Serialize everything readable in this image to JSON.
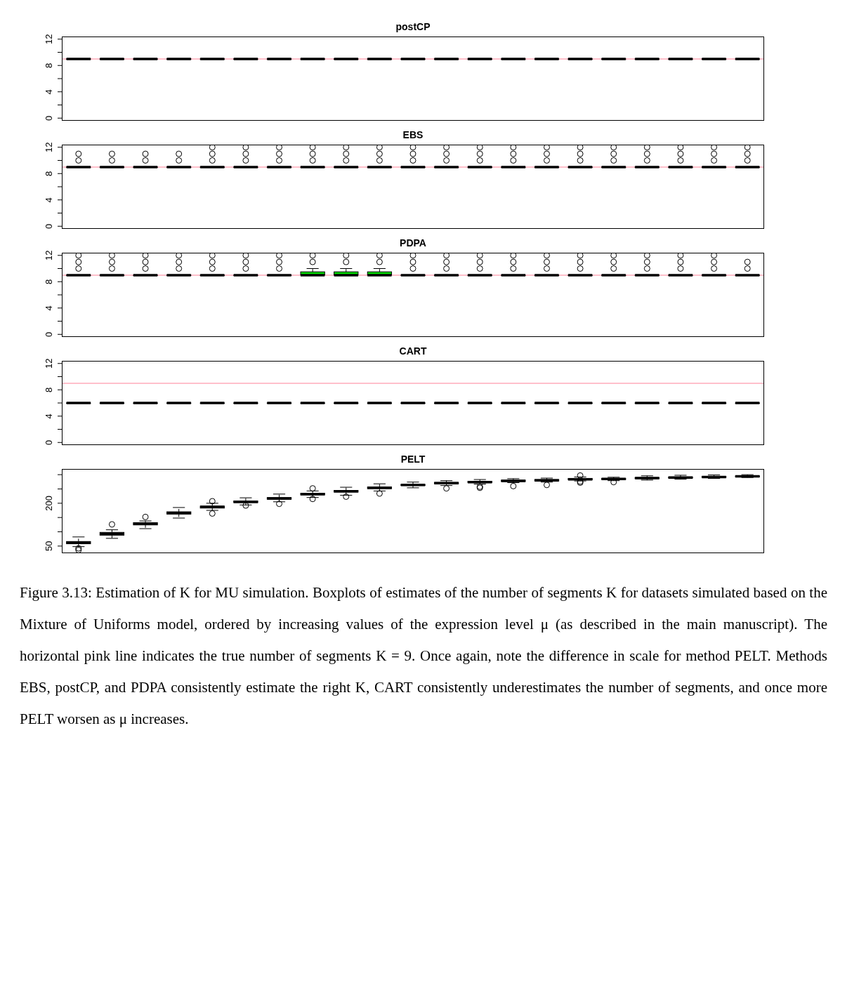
{
  "chart_data": [
    {
      "type": "box",
      "title": "postCP",
      "categories": [
        null,
        null,
        null,
        null,
        null,
        null,
        null,
        null,
        null,
        null,
        null,
        null,
        null,
        null,
        null,
        null,
        null,
        null,
        null,
        null,
        null
      ],
      "ylim": [
        -0.4,
        12.4
      ],
      "yticks": [
        0,
        {
          "value": 2,
          "label": null
        },
        4,
        {
          "value": 6,
          "label": null
        },
        8,
        {
          "value": 10,
          "label": null
        },
        12
      ],
      "tick_labels": "y",
      "ref_lines": [
        {
          "axis": "y",
          "value": 9,
          "color": "#ffc0cb"
        }
      ],
      "boxes": [
        {
          "low": 9,
          "q1": 9,
          "median": 9,
          "q3": 9,
          "high": 9
        },
        {
          "low": 9,
          "q1": 9,
          "median": 9,
          "q3": 9,
          "high": 9
        },
        {
          "low": 9,
          "q1": 9,
          "median": 9,
          "q3": 9,
          "high": 9
        },
        {
          "low": 9,
          "q1": 9,
          "median": 9,
          "q3": 9,
          "high": 9
        },
        {
          "low": 9,
          "q1": 9,
          "median": 9,
          "q3": 9,
          "high": 9
        },
        {
          "low": 9,
          "q1": 9,
          "median": 9,
          "q3": 9,
          "high": 9
        },
        {
          "low": 9,
          "q1": 9,
          "median": 9,
          "q3": 9,
          "high": 9
        },
        {
          "low": 9,
          "q1": 9,
          "median": 9,
          "q3": 9,
          "high": 9
        },
        {
          "low": 9,
          "q1": 9,
          "median": 9,
          "q3": 9,
          "high": 9
        },
        {
          "low": 9,
          "q1": 9,
          "median": 9,
          "q3": 9,
          "high": 9
        },
        {
          "low": 9,
          "q1": 9,
          "median": 9,
          "q3": 9,
          "high": 9
        },
        {
          "low": 9,
          "q1": 9,
          "median": 9,
          "q3": 9,
          "high": 9
        },
        {
          "low": 9,
          "q1": 9,
          "median": 9,
          "q3": 9,
          "high": 9
        },
        {
          "low": 9,
          "q1": 9,
          "median": 9,
          "q3": 9,
          "high": 9
        },
        {
          "low": 9,
          "q1": 9,
          "median": 9,
          "q3": 9,
          "high": 9
        },
        {
          "low": 9,
          "q1": 9,
          "median": 9,
          "q3": 9,
          "high": 9
        },
        {
          "low": 9,
          "q1": 9,
          "median": 9,
          "q3": 9,
          "high": 9
        },
        {
          "low": 9,
          "q1": 9,
          "median": 9,
          "q3": 9,
          "high": 9
        },
        {
          "low": 9,
          "q1": 9,
          "median": 9,
          "q3": 9,
          "high": 9
        },
        {
          "low": 9,
          "q1": 9,
          "median": 9,
          "q3": 9,
          "high": 9
        },
        {
          "low": 9,
          "q1": 9,
          "median": 9,
          "q3": 9,
          "high": 9
        }
      ]
    },
    {
      "type": "box",
      "title": "EBS",
      "categories": [
        null,
        null,
        null,
        null,
        null,
        null,
        null,
        null,
        null,
        null,
        null,
        null,
        null,
        null,
        null,
        null,
        null,
        null,
        null,
        null,
        null
      ],
      "ylim": [
        -0.4,
        12.4
      ],
      "yticks": [
        0,
        {
          "value": 2,
          "label": null
        },
        4,
        {
          "value": 6,
          "label": null
        },
        8,
        {
          "value": 10,
          "label": null
        },
        12
      ],
      "tick_labels": "y",
      "ref_lines": [
        {
          "axis": "y",
          "value": 9,
          "color": "#ffc0cb"
        }
      ],
      "boxes": [
        {
          "low": 9,
          "q1": 9,
          "median": 9,
          "q3": 9,
          "high": 9,
          "outliers": [
            10,
            11
          ]
        },
        {
          "low": 9,
          "q1": 9,
          "median": 9,
          "q3": 9,
          "high": 9,
          "outliers": [
            10,
            11
          ]
        },
        {
          "low": 9,
          "q1": 9,
          "median": 9,
          "q3": 9,
          "high": 9,
          "outliers": [
            10,
            11
          ]
        },
        {
          "low": 9,
          "q1": 9,
          "median": 9,
          "q3": 9,
          "high": 9,
          "outliers": [
            10,
            11
          ]
        },
        {
          "low": 9,
          "q1": 9,
          "median": 9,
          "q3": 9,
          "high": 9,
          "outliers": [
            10,
            11,
            12
          ]
        },
        {
          "low": 9,
          "q1": 9,
          "median": 9,
          "q3": 9,
          "high": 9,
          "outliers": [
            10,
            11,
            12
          ]
        },
        {
          "low": 9,
          "q1": 9,
          "median": 9,
          "q3": 9,
          "high": 9,
          "outliers": [
            10,
            11,
            12
          ]
        },
        {
          "low": 9,
          "q1": 9,
          "median": 9,
          "q3": 9,
          "high": 9,
          "outliers": [
            10,
            11,
            12
          ]
        },
        {
          "low": 9,
          "q1": 9,
          "median": 9,
          "q3": 9,
          "high": 9,
          "outliers": [
            10,
            11,
            12
          ]
        },
        {
          "low": 9,
          "q1": 9,
          "median": 9,
          "q3": 9,
          "high": 9,
          "outliers": [
            10,
            11,
            12
          ]
        },
        {
          "low": 9,
          "q1": 9,
          "median": 9,
          "q3": 9,
          "high": 9,
          "outliers": [
            10,
            11,
            12
          ]
        },
        {
          "low": 9,
          "q1": 9,
          "median": 9,
          "q3": 9,
          "high": 9,
          "outliers": [
            10,
            11,
            12
          ]
        },
        {
          "low": 9,
          "q1": 9,
          "median": 9,
          "q3": 9,
          "high": 9,
          "outliers": [
            10,
            11,
            12
          ]
        },
        {
          "low": 9,
          "q1": 9,
          "median": 9,
          "q3": 9,
          "high": 9,
          "outliers": [
            10,
            11,
            12
          ]
        },
        {
          "low": 9,
          "q1": 9,
          "median": 9,
          "q3": 9,
          "high": 9,
          "outliers": [
            10,
            11,
            12
          ]
        },
        {
          "low": 9,
          "q1": 9,
          "median": 9,
          "q3": 9,
          "high": 9,
          "outliers": [
            10,
            11,
            12
          ]
        },
        {
          "low": 9,
          "q1": 9,
          "median": 9,
          "q3": 9,
          "high": 9,
          "outliers": [
            10,
            11,
            12
          ]
        },
        {
          "low": 9,
          "q1": 9,
          "median": 9,
          "q3": 9,
          "high": 9,
          "outliers": [
            10,
            11,
            12
          ]
        },
        {
          "low": 9,
          "q1": 9,
          "median": 9,
          "q3": 9,
          "high": 9,
          "outliers": [
            10,
            11,
            12
          ]
        },
        {
          "low": 9,
          "q1": 9,
          "median": 9,
          "q3": 9,
          "high": 9,
          "outliers": [
            10,
            11,
            12
          ]
        },
        {
          "low": 9,
          "q1": 9,
          "median": 9,
          "q3": 9,
          "high": 9,
          "outliers": [
            10,
            11,
            12
          ]
        }
      ]
    },
    {
      "type": "box",
      "title": "PDPA",
      "categories": [
        null,
        null,
        null,
        null,
        null,
        null,
        null,
        null,
        null,
        null,
        null,
        null,
        null,
        null,
        null,
        null,
        null,
        null,
        null,
        null,
        null
      ],
      "ylim": [
        -0.4,
        12.4
      ],
      "yticks": [
        0,
        {
          "value": 2,
          "label": null
        },
        4,
        {
          "value": 6,
          "label": null
        },
        8,
        {
          "value": 10,
          "label": null
        },
        12
      ],
      "tick_labels": "y",
      "ref_lines": [
        {
          "axis": "y",
          "value": 9,
          "color": "#ffc0cb"
        }
      ],
      "colors": [
        "#ffffff",
        "#ffffff",
        "#ffffff",
        "#ffffff",
        "#ffffff",
        "#ffffff",
        "#ffffff",
        "#00dd00",
        "#00dd00",
        "#00dd00",
        "#ffffff",
        "#ffffff",
        "#ffffff",
        "#ffffff",
        "#ffffff",
        "#ffffff",
        "#ffffff",
        "#ffffff",
        "#ffffff",
        "#ffffff",
        "#ffffff"
      ],
      "boxes": [
        {
          "low": 9,
          "q1": 9,
          "median": 9,
          "q3": 9,
          "high": 9,
          "outliers": [
            10,
            11,
            12
          ]
        },
        {
          "low": 9,
          "q1": 9,
          "median": 9,
          "q3": 9,
          "high": 9,
          "outliers": [
            10,
            11,
            12
          ]
        },
        {
          "low": 9,
          "q1": 9,
          "median": 9,
          "q3": 9,
          "high": 9,
          "outliers": [
            10,
            11,
            12
          ]
        },
        {
          "low": 9,
          "q1": 9,
          "median": 9,
          "q3": 9,
          "high": 9,
          "outliers": [
            10,
            11,
            12
          ]
        },
        {
          "low": 9,
          "q1": 9,
          "median": 9,
          "q3": 9,
          "high": 9,
          "outliers": [
            10,
            11,
            12
          ]
        },
        {
          "low": 9,
          "q1": 9,
          "median": 9,
          "q3": 9,
          "high": 9,
          "outliers": [
            10,
            11,
            12
          ]
        },
        {
          "low": 9,
          "q1": 9,
          "median": 9,
          "q3": 9,
          "high": 9,
          "outliers": [
            10,
            11,
            12
          ]
        },
        {
          "low": 9,
          "q1": 9,
          "median": 9,
          "q3": 9.5,
          "high": 10,
          "outliers": [
            11,
            12
          ]
        },
        {
          "low": 9,
          "q1": 9,
          "median": 9,
          "q3": 9.5,
          "high": 10,
          "outliers": [
            11,
            12
          ]
        },
        {
          "low": 9,
          "q1": 9,
          "median": 9,
          "q3": 9.5,
          "high": 10,
          "outliers": [
            11,
            12
          ]
        },
        {
          "low": 9,
          "q1": 9,
          "median": 9,
          "q3": 9,
          "high": 9,
          "outliers": [
            10,
            11,
            12
          ]
        },
        {
          "low": 9,
          "q1": 9,
          "median": 9,
          "q3": 9,
          "high": 9,
          "outliers": [
            10,
            11,
            12
          ]
        },
        {
          "low": 9,
          "q1": 9,
          "median": 9,
          "q3": 9,
          "high": 9,
          "outliers": [
            10,
            11,
            12
          ]
        },
        {
          "low": 9,
          "q1": 9,
          "median": 9,
          "q3": 9,
          "high": 9,
          "outliers": [
            10,
            11,
            12
          ]
        },
        {
          "low": 9,
          "q1": 9,
          "median": 9,
          "q3": 9,
          "high": 9,
          "outliers": [
            10,
            11,
            12
          ]
        },
        {
          "low": 9,
          "q1": 9,
          "median": 9,
          "q3": 9,
          "high": 9,
          "outliers": [
            10,
            11,
            12
          ]
        },
        {
          "low": 9,
          "q1": 9,
          "median": 9,
          "q3": 9,
          "high": 9,
          "outliers": [
            10,
            11,
            12
          ]
        },
        {
          "low": 9,
          "q1": 9,
          "median": 9,
          "q3": 9,
          "high": 9,
          "outliers": [
            10,
            11,
            12
          ]
        },
        {
          "low": 9,
          "q1": 9,
          "median": 9,
          "q3": 9,
          "high": 9,
          "outliers": [
            10,
            11,
            12
          ]
        },
        {
          "low": 9,
          "q1": 9,
          "median": 9,
          "q3": 9,
          "high": 9,
          "outliers": [
            10,
            11,
            12
          ]
        },
        {
          "low": 9,
          "q1": 9,
          "median": 9,
          "q3": 9,
          "high": 9,
          "outliers": [
            10,
            11
          ]
        }
      ]
    },
    {
      "type": "box",
      "title": "CART",
      "categories": [
        null,
        null,
        null,
        null,
        null,
        null,
        null,
        null,
        null,
        null,
        null,
        null,
        null,
        null,
        null,
        null,
        null,
        null,
        null,
        null,
        null
      ],
      "ylim": [
        -0.4,
        12.4
      ],
      "yticks": [
        0,
        {
          "value": 2,
          "label": null
        },
        4,
        {
          "value": 6,
          "label": null
        },
        8,
        {
          "value": 10,
          "label": null
        },
        12
      ],
      "tick_labels": "y",
      "ref_lines": [
        {
          "axis": "y",
          "value": 9,
          "color": "#ffc0cb"
        }
      ],
      "boxes": [
        {
          "low": 6,
          "q1": 6,
          "median": 6,
          "q3": 6,
          "high": 6
        },
        {
          "low": 6,
          "q1": 6,
          "median": 6,
          "q3": 6,
          "high": 6
        },
        {
          "low": 6,
          "q1": 6,
          "median": 6,
          "q3": 6,
          "high": 6
        },
        {
          "low": 6,
          "q1": 6,
          "median": 6,
          "q3": 6,
          "high": 6
        },
        {
          "low": 6,
          "q1": 6,
          "median": 6,
          "q3": 6,
          "high": 6
        },
        {
          "low": 6,
          "q1": 6,
          "median": 6,
          "q3": 6,
          "high": 6
        },
        {
          "low": 6,
          "q1": 6,
          "median": 6,
          "q3": 6,
          "high": 6
        },
        {
          "low": 6,
          "q1": 6,
          "median": 6,
          "q3": 6,
          "high": 6
        },
        {
          "low": 6,
          "q1": 6,
          "median": 6,
          "q3": 6,
          "high": 6
        },
        {
          "low": 6,
          "q1": 6,
          "median": 6,
          "q3": 6,
          "high": 6
        },
        {
          "low": 6,
          "q1": 6,
          "median": 6,
          "q3": 6,
          "high": 6
        },
        {
          "low": 6,
          "q1": 6,
          "median": 6,
          "q3": 6,
          "high": 6
        },
        {
          "low": 6,
          "q1": 6,
          "median": 6,
          "q3": 6,
          "high": 6
        },
        {
          "low": 6,
          "q1": 6,
          "median": 6,
          "q3": 6,
          "high": 6
        },
        {
          "low": 6,
          "q1": 6,
          "median": 6,
          "q3": 6,
          "high": 6
        },
        {
          "low": 6,
          "q1": 6,
          "median": 6,
          "q3": 6,
          "high": 6
        },
        {
          "low": 6,
          "q1": 6,
          "median": 6,
          "q3": 6,
          "high": 6
        },
        {
          "low": 6,
          "q1": 6,
          "median": 6,
          "q3": 6,
          "high": 6
        },
        {
          "low": 6,
          "q1": 6,
          "median": 6,
          "q3": 6,
          "high": 6
        },
        {
          "low": 6,
          "q1": 6,
          "median": 6,
          "q3": 6,
          "high": 6
        },
        {
          "low": 6,
          "q1": 6,
          "median": 6,
          "q3": 6,
          "high": 6
        }
      ]
    },
    {
      "type": "box",
      "title": "PELT",
      "categories": [
        null,
        null,
        null,
        null,
        null,
        null,
        null,
        null,
        null,
        null,
        null,
        null,
        null,
        null,
        null,
        null,
        null,
        null,
        null,
        null,
        null
      ],
      "ylim": [
        25,
        320
      ],
      "yticks": [
        50,
        {
          "value": 100,
          "label": null
        },
        {
          "value": 150,
          "label": null
        },
        200,
        {
          "value": 250,
          "label": null
        },
        {
          "value": 300,
          "label": null
        }
      ],
      "tick_labels": "y",
      "boxes": [
        {
          "low": 48,
          "q1": 58,
          "median": 62,
          "q3": 66,
          "high": 82,
          "outliers": [
            42,
            36
          ]
        },
        {
          "low": 77,
          "q1": 88,
          "median": 93,
          "q3": 98,
          "high": 107,
          "outliers": [
            126
          ]
        },
        {
          "low": 111,
          "q1": 124,
          "median": 128,
          "q3": 132,
          "high": 138,
          "outliers": [
            152
          ]
        },
        {
          "low": 148,
          "q1": 162,
          "median": 166,
          "q3": 170,
          "high": 185
        },
        {
          "low": 175,
          "q1": 183,
          "median": 187,
          "q3": 190,
          "high": 200,
          "outliers": [
            207,
            164
          ]
        },
        {
          "low": 194,
          "q1": 202,
          "median": 205,
          "q3": 208,
          "high": 219,
          "outliers": [
            192
          ]
        },
        {
          "low": 205,
          "q1": 214,
          "median": 217,
          "q3": 220,
          "high": 232,
          "outliers": [
            198
          ]
        },
        {
          "low": 220,
          "q1": 229,
          "median": 232,
          "q3": 235,
          "high": 243,
          "outliers": [
            252,
            215
          ]
        },
        {
          "low": 228,
          "q1": 239,
          "median": 242,
          "q3": 245,
          "high": 256,
          "outliers": [
            223
          ]
        },
        {
          "low": 243,
          "q1": 251,
          "median": 254,
          "q3": 257,
          "high": 268,
          "outliers": [
            234
          ]
        },
        {
          "low": 254,
          "q1": 262,
          "median": 264,
          "q3": 266,
          "high": 274
        },
        {
          "low": 262,
          "q1": 268,
          "median": 270,
          "q3": 273,
          "high": 279,
          "outliers": [
            252
          ]
        },
        {
          "low": 267,
          "q1": 272,
          "median": 274,
          "q3": 277,
          "high": 283,
          "outliers": [
            258,
            254
          ]
        },
        {
          "low": 272,
          "q1": 276,
          "median": 278,
          "q3": 281,
          "high": 286,
          "outliers": [
            260
          ]
        },
        {
          "low": 274,
          "q1": 278,
          "median": 280,
          "q3": 283,
          "high": 288,
          "outliers": [
            264
          ]
        },
        {
          "low": 278,
          "q1": 282,
          "median": 284,
          "q3": 287,
          "high": 292,
          "outliers": [
            297,
            272,
            276
          ]
        },
        {
          "low": 279,
          "q1": 283,
          "median": 285,
          "q3": 287,
          "high": 291,
          "outliers": [
            274
          ]
        },
        {
          "low": 281,
          "q1": 286,
          "median": 288,
          "q3": 290,
          "high": 296
        },
        {
          "low": 284,
          "q1": 288,
          "median": 290,
          "q3": 292,
          "high": 298
        },
        {
          "low": 287,
          "q1": 290,
          "median": 292,
          "q3": 294,
          "high": 299
        },
        {
          "low": 290,
          "q1": 292,
          "median": 294,
          "q3": 296,
          "high": 300
        }
      ],
      "annotations": [
        "Figure 3.13: Estimation of K for MU simulation. Boxplots of estimates of the number of segments K for datasets simulated based on the Mixture of Uniforms model, ordered by increasing values of the expression level μ (as described in the main manuscript). The horizontal pink line indicates the true number of segments K = 9. Once again, note the difference in scale for method PELT. Methods EBS, postCP, and PDPA consistently estimate the right K, CART consistently underestimates the number of segments, and once more PELT worsen as μ increases."
      ]
    }
  ]
}
